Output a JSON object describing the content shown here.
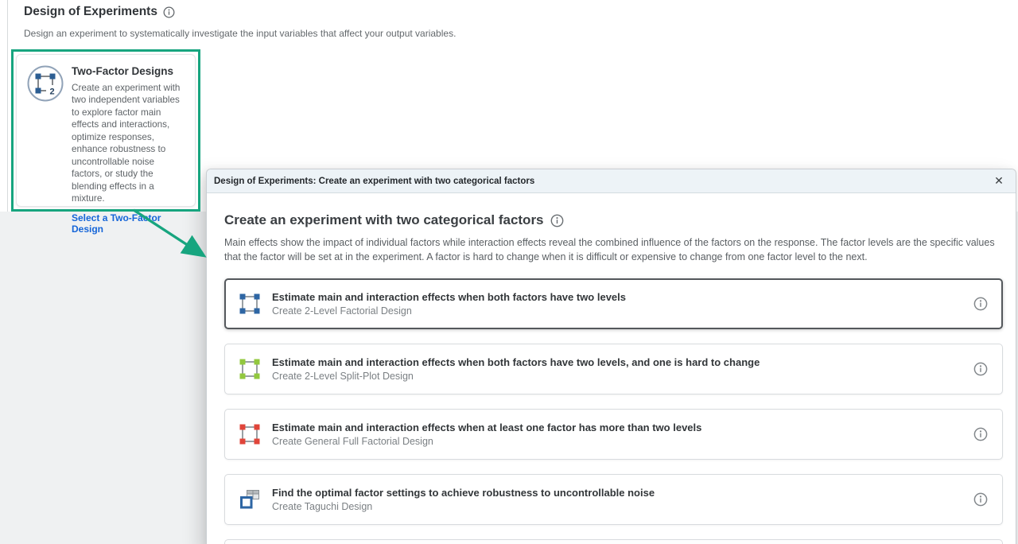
{
  "page": {
    "title": "Design of Experiments",
    "subtitle": "Design an experiment to systematically investigate the input variables that affect your output variables."
  },
  "promo_card": {
    "title": "Two-Factor Designs",
    "description": "Create an experiment with two independent variables to explore factor main effects and interactions, optimize responses, enhance robustness to uncontrollable noise factors, or study the blending effects in a mixture.",
    "link_label": "Select a Two-Factor Design",
    "icon": "two-factor-design-icon",
    "icon_badge": "2"
  },
  "dialog": {
    "titlebar": "Design of Experiments: Create an experiment with two categorical factors",
    "close_label": "✕",
    "heading": "Create an experiment with two categorical factors",
    "description": "Main effects show the impact of individual factors while interaction effects reveal the combined influence of the factors on the response. The factor levels are the specific values that the factor will be set at in the experiment. A factor is hard to change when it is difficult or expensive to change from one factor level to the next.",
    "options": [
      {
        "title": "Estimate main and interaction effects when both factors have two levels",
        "subtitle": "Create 2-Level Factorial Design",
        "icon": "factorial-2level-icon",
        "icon_color": "#2e66a4",
        "selected": true
      },
      {
        "title": "Estimate main and interaction effects when both factors have two levels, and one is hard to change",
        "subtitle": "Create 2-Level Split-Plot Design",
        "icon": "splitplot-2level-icon",
        "icon_color": "#92c83e",
        "selected": false
      },
      {
        "title": "Estimate main and interaction effects when at least one factor has more than two levels",
        "subtitle": "Create General Full Factorial Design",
        "icon": "general-full-factorial-icon",
        "icon_color": "#e0453a",
        "selected": false
      },
      {
        "title": "Find the optimal factor settings to achieve robustness to uncontrollable noise",
        "subtitle": "Create Taguchi Design",
        "icon": "taguchi-icon",
        "icon_color": "#2e66a4",
        "selected": false
      }
    ]
  },
  "colors": {
    "accent_green": "#17a57f",
    "link_blue": "#1565d8",
    "titlebar_bg": "#edf3f7",
    "backdrop_grey": "#eff1f2",
    "factorial_blue": "#2e66a4",
    "splitplot_green": "#92c83e",
    "full_factorial_red": "#e0453a",
    "grid_grey": "#8a9094"
  }
}
